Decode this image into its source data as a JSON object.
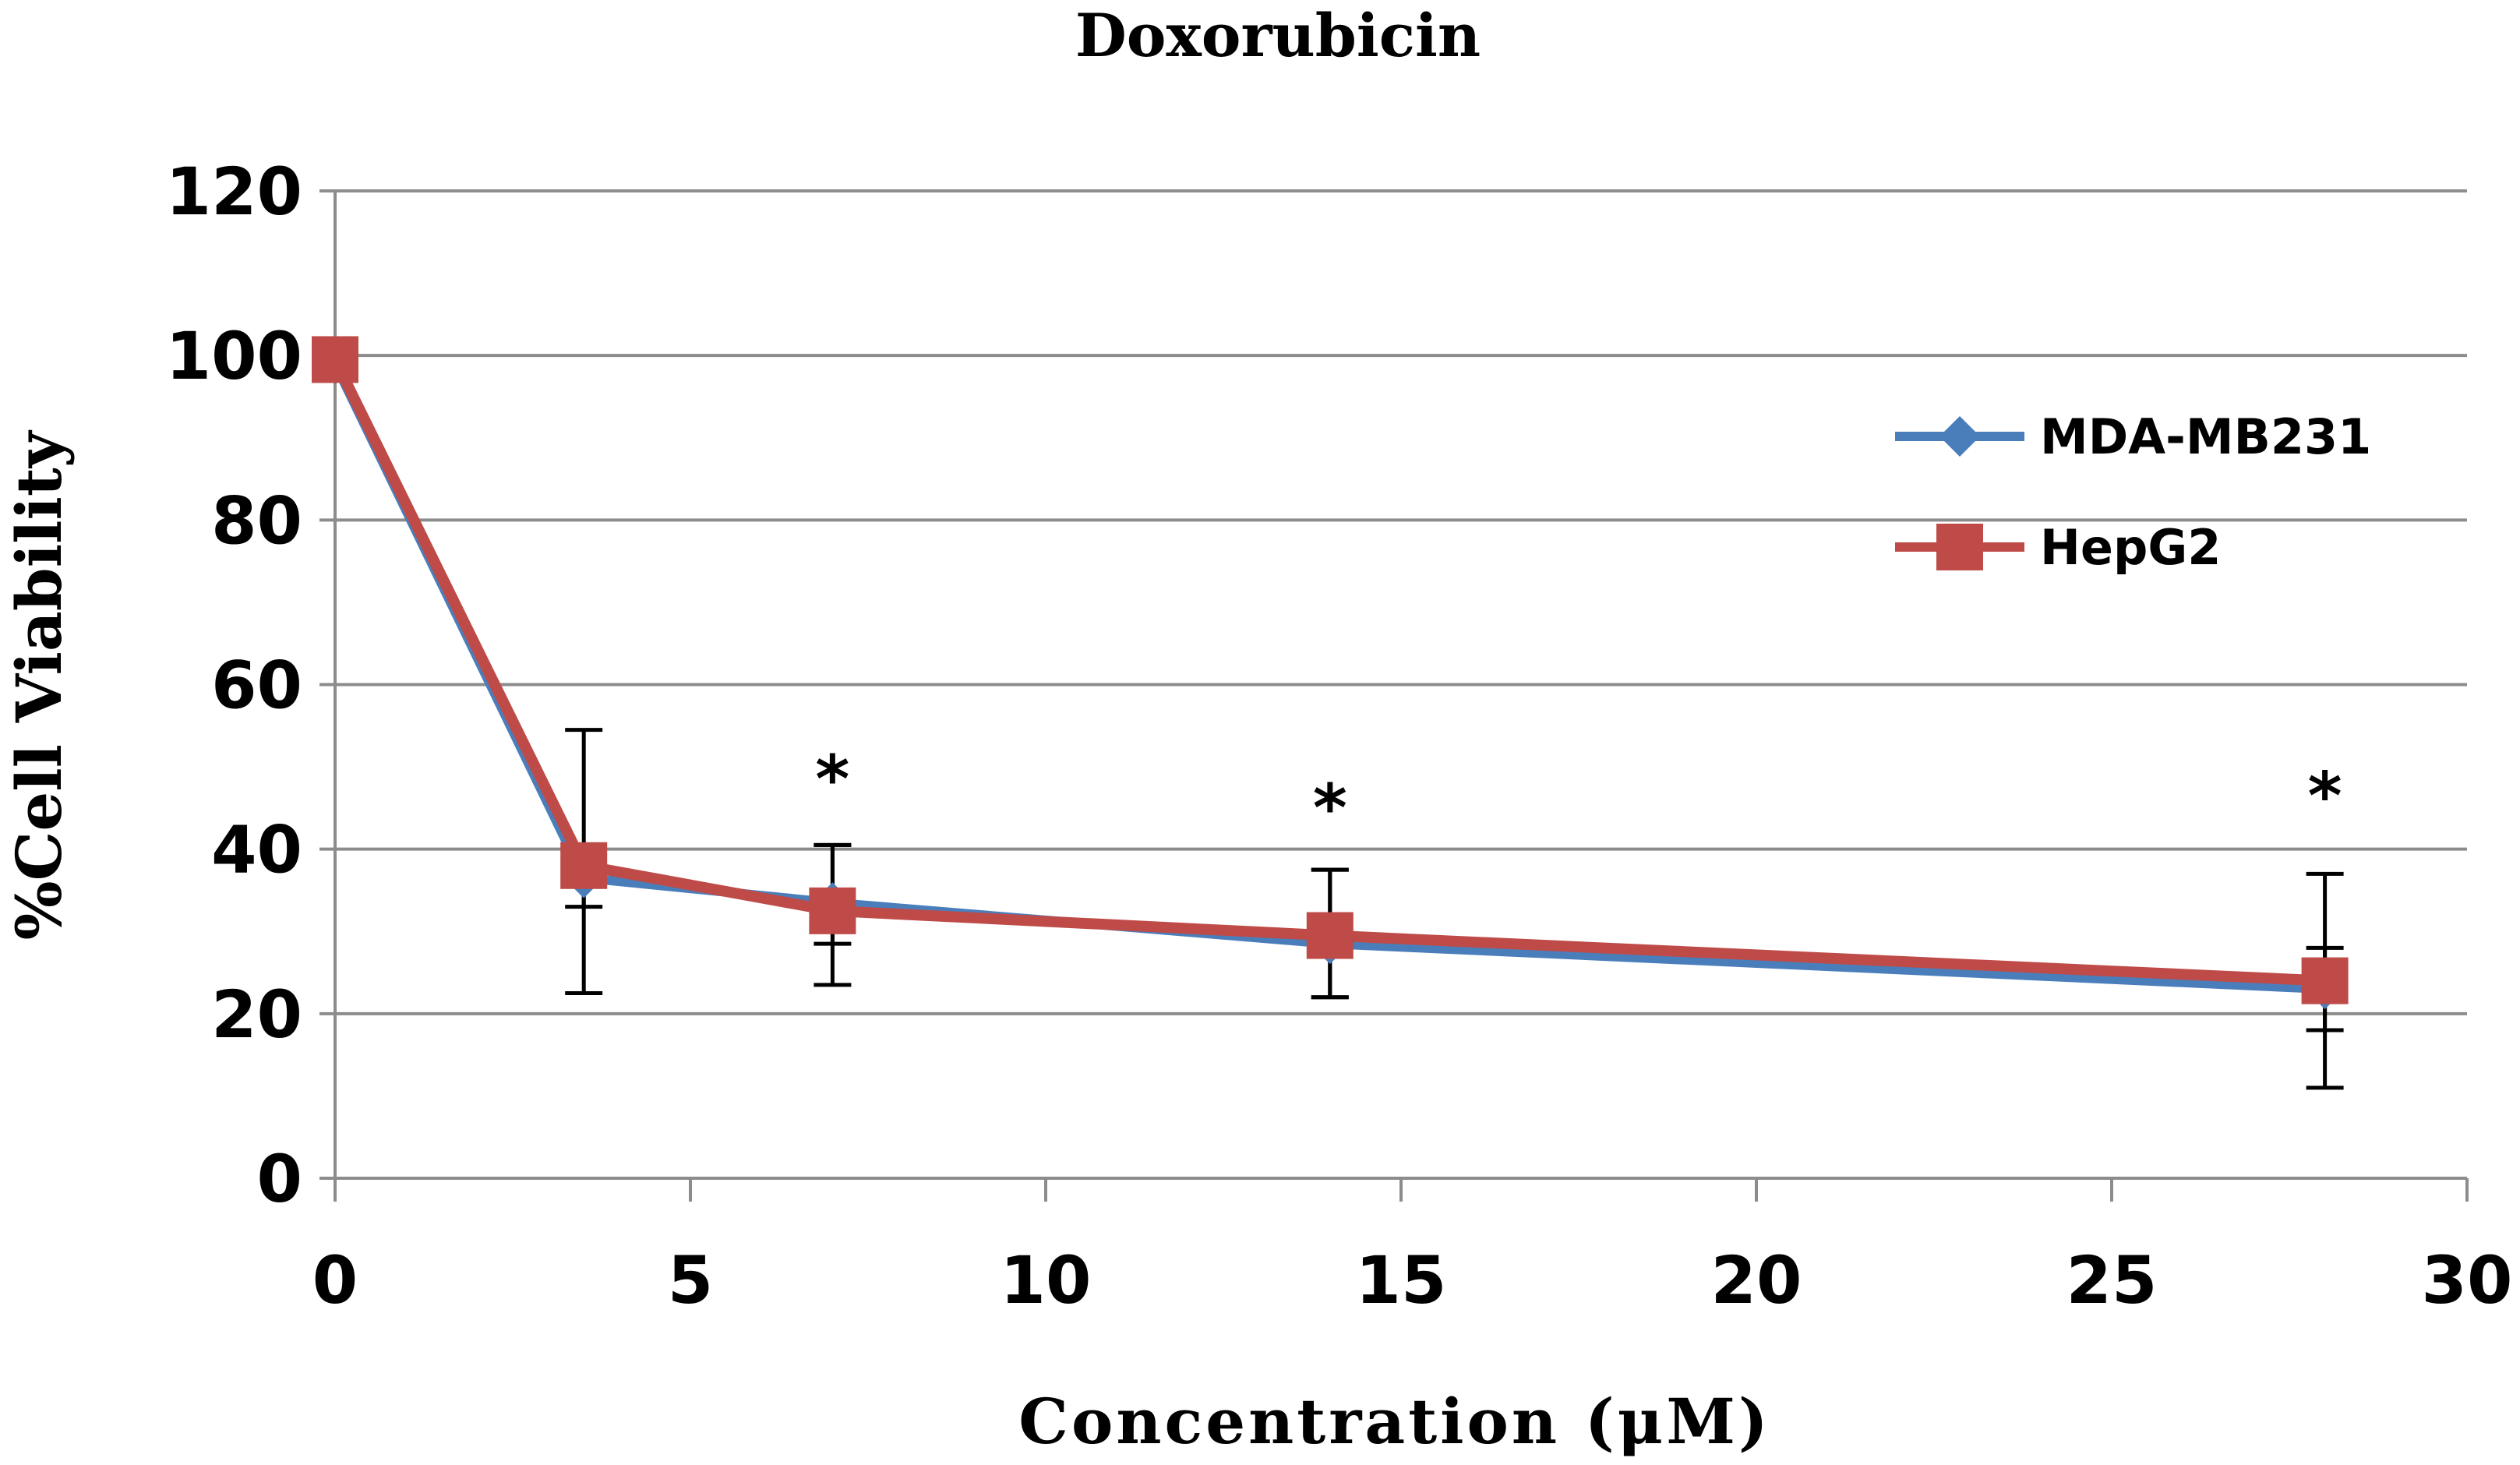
{
  "chart_data": {
    "type": "line",
    "title": "Doxorubicin",
    "xlabel": "Concentration (μM)",
    "ylabel": "%Cell Viability",
    "xlim": [
      0,
      30
    ],
    "ylim": [
      0,
      120
    ],
    "xticks": [
      0,
      5,
      10,
      15,
      20,
      25,
      30
    ],
    "yticks": [
      0,
      20,
      40,
      60,
      80,
      100,
      120
    ],
    "grid": "horizontal",
    "legend_position": "right",
    "series": [
      {
        "name": "MDA-MB231",
        "color": "#4a7ebb",
        "marker": "diamond",
        "x": [
          0,
          3.5,
          7,
          14,
          28
        ],
        "y": [
          99,
          36.5,
          33.5,
          28.5,
          23
        ],
        "err_low": [
          0,
          14,
          10,
          6.5,
          5
        ],
        "err_high": [
          0,
          18,
          7,
          9,
          5
        ]
      },
      {
        "name": "HepG2",
        "color": "#be4b48",
        "marker": "square",
        "x": [
          0,
          3.5,
          7,
          14,
          28
        ],
        "y": [
          99.5,
          38,
          32.5,
          29.5,
          24
        ],
        "err_low": [
          0,
          5,
          4,
          7.5,
          13
        ],
        "err_high": [
          0,
          0,
          8,
          8,
          13
        ]
      }
    ],
    "annotations": [
      {
        "text": "*",
        "x": 7,
        "y": 48
      },
      {
        "text": "*",
        "x": 14,
        "y": 44.5
      },
      {
        "text": "*",
        "x": 28,
        "y": 46
      }
    ]
  }
}
